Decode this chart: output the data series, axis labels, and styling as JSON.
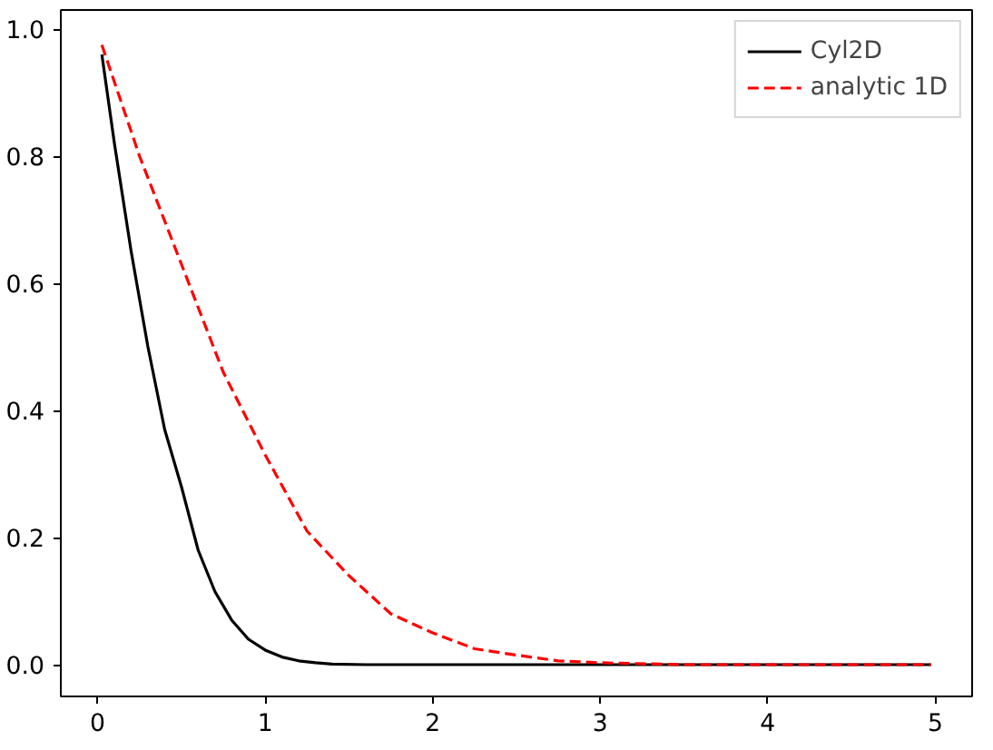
{
  "chart_data": {
    "type": "line",
    "xlim": [
      -0.22,
      5.22
    ],
    "ylim": [
      -0.05,
      1.03
    ],
    "xticks": [
      0,
      1,
      2,
      3,
      4,
      5
    ],
    "yticks": [
      {
        "value": 0,
        "label": "0.0"
      },
      {
        "value": 0.2,
        "label": "0.2"
      },
      {
        "value": 0.4,
        "label": "0.4"
      },
      {
        "value": 0.6,
        "label": "0.6"
      },
      {
        "value": 0.8,
        "label": "0.8"
      },
      {
        "value": 1.0,
        "label": "1.0"
      }
    ],
    "grid": false,
    "legend": "top right",
    "series": [
      {
        "name": "Cyl2D",
        "color": "#000000",
        "line_style": "solid",
        "x": [
          0.025,
          0.1,
          0.2,
          0.3,
          0.4,
          0.5,
          0.6,
          0.7,
          0.8,
          0.9,
          1.0,
          1.1,
          1.2,
          1.3,
          1.4,
          1.6,
          2.0,
          3.0,
          4.0,
          4.975
        ],
        "values": [
          0.96,
          0.82,
          0.65,
          0.5,
          0.37,
          0.28,
          0.18,
          0.115,
          0.07,
          0.04,
          0.023,
          0.012,
          0.006,
          0.003,
          0.001,
          0.0,
          0.0,
          0.0,
          0.0,
          0.0
        ]
      },
      {
        "name": "analytic 1D",
        "color": "#ff0000",
        "line_style": "dashed",
        "x": [
          0.025,
          0.25,
          0.5,
          0.75,
          1.0,
          1.25,
          1.5,
          1.75,
          2.0,
          2.25,
          2.5,
          2.75,
          3.0,
          3.5,
          4.0,
          4.975
        ],
        "values": [
          0.975,
          0.8,
          0.63,
          0.46,
          0.33,
          0.21,
          0.14,
          0.08,
          0.05,
          0.025,
          0.015,
          0.006,
          0.003,
          0.0,
          0.0,
          0.0
        ]
      }
    ]
  }
}
